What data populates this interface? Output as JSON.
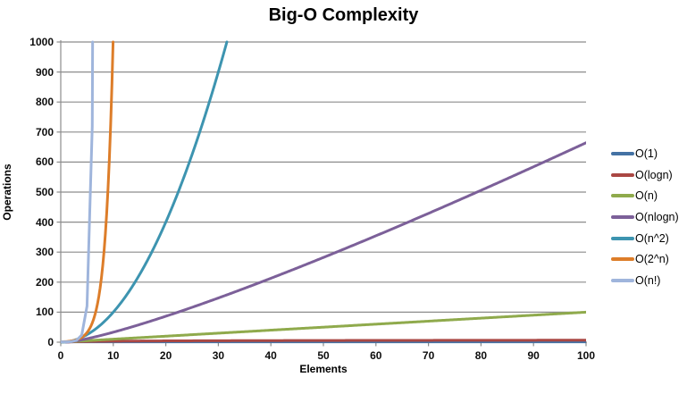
{
  "chart_data": {
    "type": "line",
    "title": "Big-O Complexity",
    "xlabel": "Elements",
    "ylabel": "Operations",
    "xlim": [
      0,
      100
    ],
    "ylim": [
      0,
      1000
    ],
    "xticks": [
      0,
      10,
      20,
      30,
      40,
      50,
      60,
      70,
      80,
      90,
      100
    ],
    "yticks": [
      0,
      100,
      200,
      300,
      400,
      500,
      600,
      700,
      800,
      900,
      1000
    ],
    "grid": "horizontal",
    "grid_color": "#8c8c8c",
    "axis_color": "#8c8c8c",
    "legend_position": "right",
    "line_width": 3,
    "series": [
      {
        "name": "O(1)",
        "formula": "1",
        "color": "#4472A4",
        "points": [
          [
            1,
            1
          ],
          [
            50,
            1
          ],
          [
            100,
            1
          ]
        ]
      },
      {
        "name": "O(logn)",
        "formula": "log2(n)",
        "color": "#AA4743",
        "points": [
          [
            1,
            0
          ],
          [
            2,
            1
          ],
          [
            4,
            2
          ],
          [
            8,
            3
          ],
          [
            16,
            4
          ],
          [
            32,
            5
          ],
          [
            64,
            6
          ],
          [
            100,
            6.64
          ]
        ]
      },
      {
        "name": "O(n)",
        "formula": "n",
        "color": "#8FAA4C",
        "points": [
          [
            0,
            0
          ],
          [
            25,
            25
          ],
          [
            50,
            50
          ],
          [
            75,
            75
          ],
          [
            100,
            100
          ]
        ]
      },
      {
        "name": "O(nlogn)",
        "formula": "n*log2(n)",
        "color": "#7C6099",
        "points": [
          [
            1,
            0
          ],
          [
            10,
            33.2
          ],
          [
            25,
            116.1
          ],
          [
            50,
            282.2
          ],
          [
            75,
            467.2
          ],
          [
            100,
            664.4
          ]
        ]
      },
      {
        "name": "O(n^2)",
        "formula": "n^2",
        "color": "#3D94B0",
        "points": [
          [
            0,
            0
          ],
          [
            10,
            100
          ],
          [
            20,
            400
          ],
          [
            30,
            900
          ],
          [
            31.62,
            1000
          ]
        ]
      },
      {
        "name": "O(2^n)",
        "formula": "2^n",
        "color": "#DD7D29",
        "points": [
          [
            1,
            2
          ],
          [
            5,
            32
          ],
          [
            8,
            256
          ],
          [
            9,
            512
          ],
          [
            9.97,
            1000
          ]
        ]
      },
      {
        "name": "O(n!)",
        "formula": "n!",
        "color": "#9FB5DC",
        "points": [
          [
            1,
            1
          ],
          [
            3,
            6
          ],
          [
            5,
            120
          ],
          [
            6,
            720
          ],
          [
            6.06,
            1000
          ]
        ]
      }
    ]
  }
}
